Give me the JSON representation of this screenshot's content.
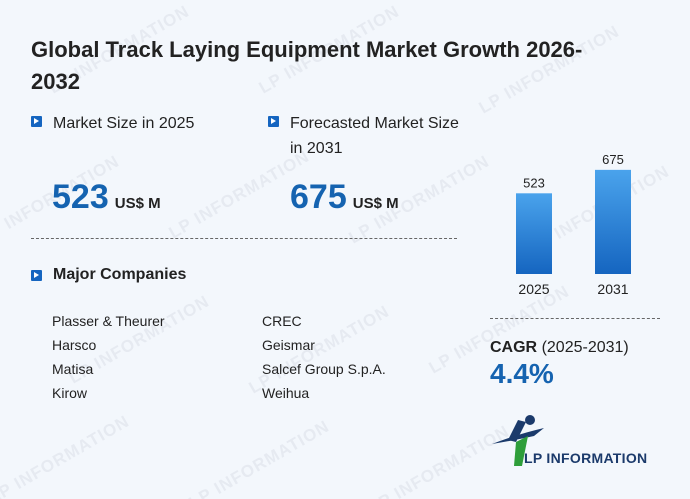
{
  "title": "Global Track Laying Equipment Market Growth 2026-2032",
  "market_size": {
    "label": "Market Size in 2025",
    "value": "523",
    "unit": "US$ M"
  },
  "forecast": {
    "label": "Forecasted Market Size in 2031",
    "value": "675",
    "unit": "US$ M"
  },
  "companies": {
    "heading": "Major Companies",
    "left": [
      "Plasser & Theurer",
      "Harsco",
      "Matisa",
      "Kirow"
    ],
    "right": [
      "CREC",
      "Geismar",
      "Salcef Group S.p.A.",
      "Weihua"
    ]
  },
  "cagr": {
    "label": "CAGR",
    "period": "(2025-2031)",
    "value": "4.4%"
  },
  "logo": {
    "text": "LP INFORMATION"
  },
  "watermark": "LP INFORMATION",
  "colors": {
    "accent": "#1563b0",
    "bar_top": "#4aa3ec",
    "bar_bottom": "#1565c0",
    "logo_green": "#2e9e3a"
  },
  "chart_data": {
    "type": "bar",
    "categories": [
      "2025",
      "2031"
    ],
    "values": [
      523,
      675
    ],
    "ylim": [
      0,
      700
    ]
  }
}
